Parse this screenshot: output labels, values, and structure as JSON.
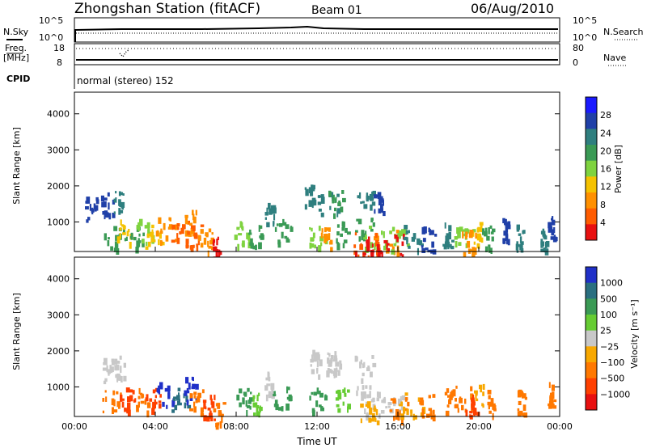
{
  "header": {
    "station": "Zhongshan Station (fitACF)",
    "beam": "Beam 01",
    "date": "06/Aug/2010"
  },
  "status_panel": {
    "nsky_label": "N.Sky",
    "nsearch_label": "N.Search",
    "freq_label_1": "Freq.",
    "freq_label_2": "[MHz]",
    "nave_label": "Nave",
    "cpid_label": "CPID",
    "mode_text": "normal (stereo) 152",
    "left_ticks_noise": [
      "10^5",
      "10^0"
    ],
    "right_ticks_noise": [
      "10^5",
      "10^0"
    ],
    "left_ticks_freq": [
      "18",
      "8"
    ],
    "right_ticks_freq": [
      "80",
      "0"
    ]
  },
  "colors": {
    "power": [
      "#1a1aff",
      "#2040a8",
      "#2f7f7f",
      "#3a9a55",
      "#7fd33f",
      "#f5c200",
      "#ff9000",
      "#ff5c00",
      "#e81010"
    ],
    "velocity": [
      "#2030c8",
      "#2a6f80",
      "#3a9a55",
      "#66cc33",
      "#c8c8c8",
      "#f8a800",
      "#ff7800",
      "#ff4000",
      "#e81010"
    ]
  },
  "chart_data": [
    {
      "type": "heatmap",
      "name": "power",
      "x_ticks": [
        "00:00",
        "04:00",
        "08:00",
        "12:00",
        "16:00",
        "20:00",
        "00:00"
      ],
      "xlim": [
        0,
        24
      ],
      "ylabel": "Slant Range [km]",
      "ylim": [
        180,
        4600
      ],
      "y_ticks": [
        1000,
        2000,
        3000,
        4000
      ],
      "colorbar_label": "Power [dB]",
      "colorbar_ticks": [
        "28",
        "24",
        "20",
        "16",
        "12",
        "8",
        "4"
      ],
      "cells": [
        [
          0.9,
          1400,
          1,
          1
        ],
        [
          1.6,
          1500,
          0.6,
          1
        ],
        [
          2.2,
          1550,
          0.6,
          2
        ],
        [
          2.0,
          600,
          1.2,
          3
        ],
        [
          2.4,
          750,
          0.8,
          5
        ],
        [
          3.1,
          600,
          0.7,
          3
        ],
        [
          3.5,
          750,
          0.9,
          4
        ],
        [
          3.9,
          650,
          0.8,
          5
        ],
        [
          4.5,
          800,
          1.0,
          6
        ],
        [
          5.2,
          700,
          0.9,
          7
        ],
        [
          5.7,
          1000,
          0.6,
          6
        ],
        [
          5.9,
          650,
          0.7,
          7
        ],
        [
          6.4,
          500,
          0.8,
          6
        ],
        [
          7.0,
          350,
          0.6,
          8
        ],
        [
          8.3,
          700,
          0.8,
          4
        ],
        [
          8.9,
          600,
          0.6,
          3
        ],
        [
          9.6,
          1200,
          0.5,
          2
        ],
        [
          10.3,
          750,
          0.8,
          3
        ],
        [
          11.6,
          1700,
          0.5,
          2
        ],
        [
          12.0,
          650,
          0.8,
          4
        ],
        [
          12.5,
          1550,
          1.0,
          2
        ],
        [
          12.9,
          1550,
          0.7,
          3
        ],
        [
          12.4,
          600,
          0.5,
          6
        ],
        [
          13.2,
          700,
          0.6,
          3
        ],
        [
          14.3,
          1550,
          0.9,
          2
        ],
        [
          15.0,
          1550,
          0.6,
          1
        ],
        [
          14.3,
          800,
          0.9,
          3
        ],
        [
          14.8,
          600,
          1.3,
          4
        ],
        [
          15.4,
          480,
          1.2,
          6
        ],
        [
          16.1,
          550,
          1.1,
          4
        ],
        [
          14.5,
          380,
          1.4,
          7
        ],
        [
          15.6,
          340,
          1.3,
          8
        ],
        [
          14.4,
          260,
          1.2,
          9
        ],
        [
          16.5,
          600,
          1.4,
          2
        ],
        [
          17.5,
          550,
          0.7,
          1
        ],
        [
          18.5,
          650,
          0.6,
          2
        ],
        [
          19.2,
          750,
          1.0,
          4
        ],
        [
          19.9,
          700,
          0.6,
          5
        ],
        [
          19.5,
          450,
          0.7,
          6
        ],
        [
          20.4,
          600,
          0.5,
          3
        ],
        [
          21.3,
          800,
          0.3,
          1
        ],
        [
          22.0,
          600,
          0.4,
          2
        ],
        [
          23.6,
          900,
          0.4,
          1
        ],
        [
          23.2,
          500,
          0.3,
          2
        ]
      ]
    },
    {
      "type": "heatmap",
      "name": "velocity",
      "x_ticks": [
        "00:00",
        "04:00",
        "08:00",
        "12:00",
        "16:00",
        "20:00",
        "00:00"
      ],
      "xlim": [
        0,
        24
      ],
      "xlabel": "Time UT",
      "ylabel": "Slant Range [km]",
      "ylim": [
        180,
        4600
      ],
      "y_ticks": [
        1000,
        2000,
        3000,
        4000
      ],
      "colorbar_label": "Velocity [m s⁻¹]",
      "colorbar_ticks": [
        "1000",
        "500",
        "100",
        "25",
        "−25",
        "−100",
        "−500",
        "−1000"
      ],
      "cells": [
        [
          1.7,
          1500,
          0.8,
          4
        ],
        [
          2.2,
          1550,
          0.5,
          4
        ],
        [
          1.9,
          600,
          1.2,
          6
        ],
        [
          2.6,
          700,
          0.8,
          7
        ],
        [
          3.3,
          650,
          0.7,
          6
        ],
        [
          3.9,
          700,
          0.8,
          7
        ],
        [
          4.5,
          800,
          0.9,
          0
        ],
        [
          5.2,
          700,
          0.8,
          1
        ],
        [
          5.7,
          950,
          0.6,
          0
        ],
        [
          6.0,
          600,
          0.7,
          6
        ],
        [
          6.6,
          450,
          0.6,
          7
        ],
        [
          7.1,
          300,
          0.5,
          6
        ],
        [
          8.3,
          650,
          0.8,
          2
        ],
        [
          9.0,
          600,
          0.7,
          3
        ],
        [
          9.6,
          1100,
          0.4,
          4
        ],
        [
          10.2,
          700,
          0.8,
          2
        ],
        [
          11.8,
          1700,
          0.4,
          4
        ],
        [
          12.0,
          650,
          0.8,
          2
        ],
        [
          12.5,
          1550,
          1.1,
          4
        ],
        [
          12.8,
          1750,
          0.6,
          4
        ],
        [
          13.2,
          700,
          0.6,
          3
        ],
        [
          14.3,
          1550,
          0.9,
          4
        ],
        [
          14.3,
          800,
          0.9,
          4
        ],
        [
          14.9,
          550,
          1.3,
          4
        ],
        [
          15.6,
          450,
          1.2,
          4
        ],
        [
          14.5,
          320,
          1.1,
          5
        ],
        [
          16.0,
          400,
          0.9,
          6
        ],
        [
          16.6,
          550,
          1.4,
          5
        ],
        [
          17.4,
          500,
          0.7,
          6
        ],
        [
          18.6,
          650,
          0.6,
          6
        ],
        [
          19.3,
          700,
          1.0,
          6
        ],
        [
          19.9,
          750,
          0.6,
          5
        ],
        [
          19.6,
          450,
          0.6,
          7
        ],
        [
          20.5,
          600,
          0.5,
          6
        ],
        [
          22.1,
          600,
          0.4,
          6
        ],
        [
          23.6,
          800,
          0.4,
          6
        ]
      ]
    }
  ]
}
